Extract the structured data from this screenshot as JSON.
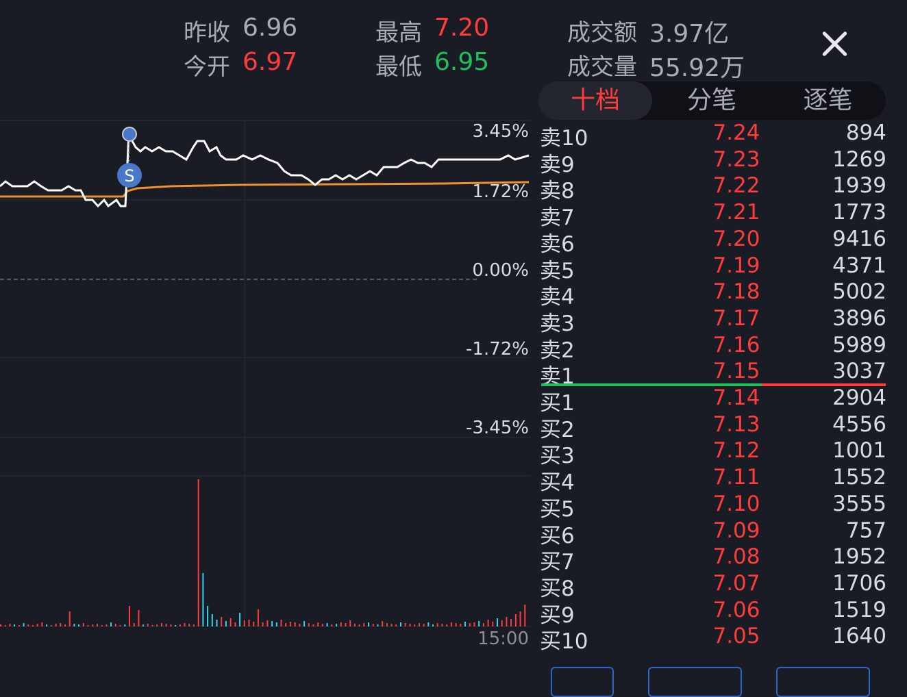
{
  "header": {
    "prev_close_label": "昨收",
    "prev_close": "6.96",
    "open_label": "今开",
    "open": "6.97",
    "high_label": "最高",
    "high": "7.20",
    "low_label": "最低",
    "low": "6.95",
    "turnover_label": "成交额",
    "turnover": "3.97亿",
    "volume_label": "成交量",
    "volume": "55.92万"
  },
  "tabs": [
    {
      "label": "十档",
      "active": true
    },
    {
      "label": "分笔",
      "active": false
    },
    {
      "label": "逐笔",
      "active": false
    }
  ],
  "chart": {
    "pct_labels": [
      "3.45%",
      "1.72%",
      "0.00%",
      "-1.72%",
      "-3.45%"
    ],
    "time_label": "15:00",
    "marker_label": "S",
    "colors": {
      "price_line": "#ffffff",
      "avg_line": "#f0902a",
      "up": "#ff3b3b",
      "down": "#2fd8e8"
    }
  },
  "orderbook": {
    "asks": [
      {
        "label": "卖10",
        "price": "7.24",
        "volume": "894"
      },
      {
        "label": "卖9",
        "price": "7.23",
        "volume": "1269"
      },
      {
        "label": "卖8",
        "price": "7.22",
        "volume": "1939"
      },
      {
        "label": "卖7",
        "price": "7.21",
        "volume": "1773"
      },
      {
        "label": "卖6",
        "price": "7.20",
        "volume": "9416"
      },
      {
        "label": "卖5",
        "price": "7.19",
        "volume": "4371"
      },
      {
        "label": "卖4",
        "price": "7.18",
        "volume": "5002"
      },
      {
        "label": "卖3",
        "price": "7.17",
        "volume": "3896"
      },
      {
        "label": "卖2",
        "price": "7.16",
        "volume": "5989"
      },
      {
        "label": "卖1",
        "price": "7.15",
        "volume": "3037"
      }
    ],
    "bids": [
      {
        "label": "买1",
        "price": "7.14",
        "volume": "2904"
      },
      {
        "label": "买2",
        "price": "7.13",
        "volume": "4556"
      },
      {
        "label": "买3",
        "price": "7.12",
        "volume": "1001"
      },
      {
        "label": "买4",
        "price": "7.11",
        "volume": "1552"
      },
      {
        "label": "买5",
        "price": "7.10",
        "volume": "3555"
      },
      {
        "label": "买6",
        "price": "7.09",
        "volume": "757"
      },
      {
        "label": "买7",
        "price": "7.08",
        "volume": "1952"
      },
      {
        "label": "买8",
        "price": "7.07",
        "volume": "1706"
      },
      {
        "label": "买9",
        "price": "7.06",
        "volume": "1519"
      },
      {
        "label": "买10",
        "price": "7.05",
        "volume": "1640"
      }
    ]
  }
}
